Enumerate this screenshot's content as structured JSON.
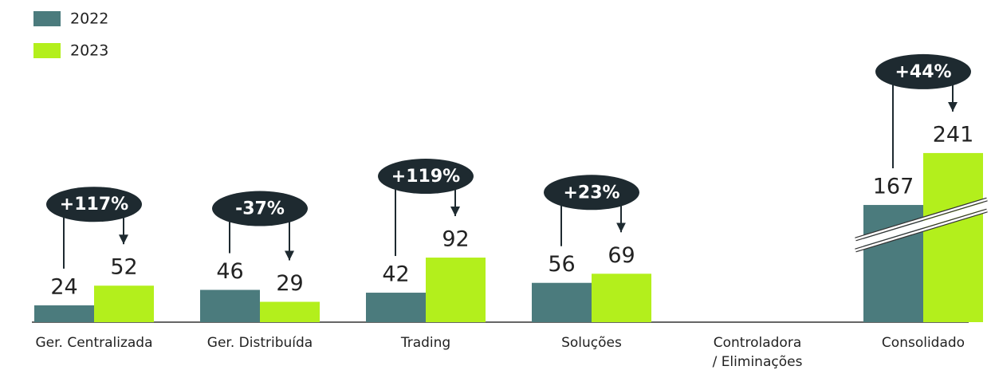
{
  "chart_data": {
    "type": "bar",
    "categories": [
      "Ger. Centralizada",
      "Ger. Distribuída",
      "Trading",
      "Soluções",
      "Controladora / Eliminações",
      "Consolidado"
    ],
    "series": [
      {
        "name": "2022",
        "color": "#4b7b7d",
        "values": [
          24,
          46,
          42,
          56,
          null,
          167
        ]
      },
      {
        "name": "2023",
        "color": "#b3ef1c",
        "values": [
          52,
          29,
          92,
          69,
          null,
          241
        ]
      }
    ],
    "annotations": [
      "+117%",
      "-37%",
      "+119%",
      "+23%",
      null,
      "+44%"
    ],
    "ylim": [
      0,
      250
    ]
  }
}
